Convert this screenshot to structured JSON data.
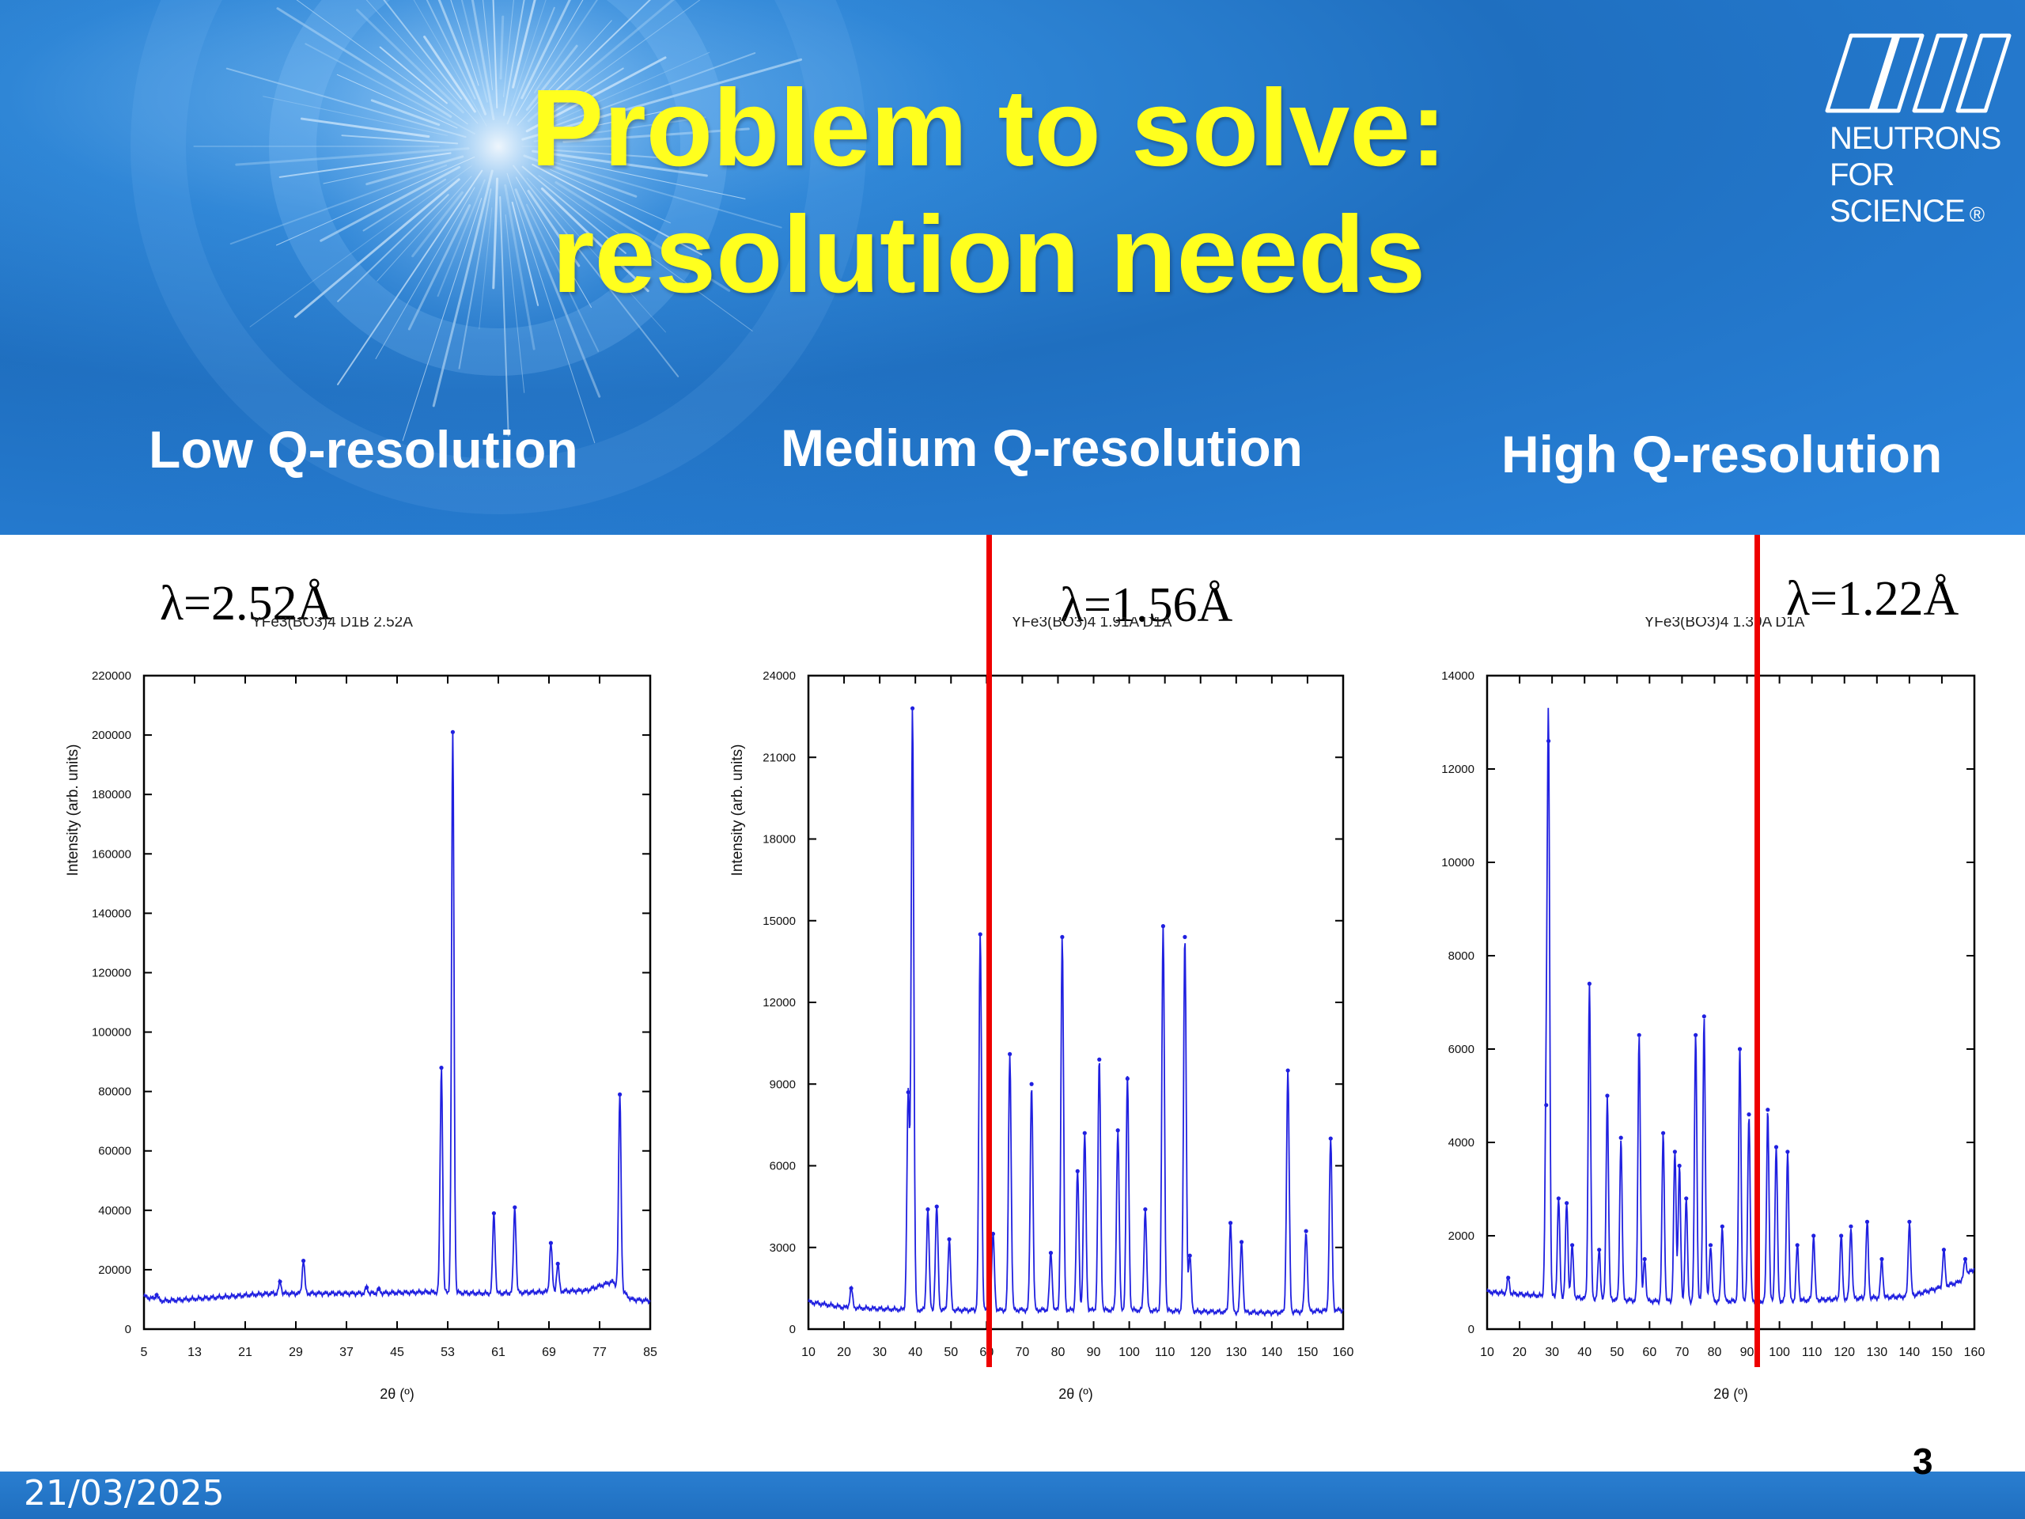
{
  "slide": {
    "title_line1": "Problem to solve:",
    "title_line2": "resolution needs",
    "logo_line1": "NEUTRONS",
    "logo_line2": "FOR SCIENCE",
    "logo_mark": "®",
    "date": "21/03/2025",
    "page_number": "3",
    "column_headers": [
      "Low Q-resolution",
      "Medium Q-resolution",
      "High Q-resolution"
    ],
    "wavelengths": [
      "λ=2.52Å",
      "λ=1.56Å",
      "λ=1.22Å"
    ],
    "colors": {
      "title": "#ffff1e",
      "header_bg": "#2a7ed0",
      "marker_line": "#ee0000",
      "data": "#2020e0"
    }
  },
  "chart_data": [
    {
      "type": "line",
      "title": "YFe3(BO3)4 D1B 2.52A",
      "xlabel": "2θ (º)",
      "ylabel": "Intensity (arb. units)",
      "xlim": [
        5,
        85
      ],
      "ylim": [
        0,
        220000
      ],
      "xticks": [
        5,
        13,
        21,
        29,
        37,
        45,
        53,
        61,
        69,
        77,
        85
      ],
      "yticks": [
        0,
        20000,
        40000,
        60000,
        80000,
        100000,
        120000,
        140000,
        160000,
        180000,
        200000,
        220000
      ],
      "baseline": [
        [
          5,
          11000
        ],
        [
          8,
          9500
        ],
        [
          15,
          10500
        ],
        [
          25,
          12000
        ],
        [
          40,
          12000
        ],
        [
          50,
          12500
        ],
        [
          60,
          12000
        ],
        [
          75,
          13000
        ],
        [
          79,
          16000
        ],
        [
          82,
          10000
        ],
        [
          85,
          9500
        ]
      ],
      "peaks": [
        [
          7,
          11500
        ],
        [
          26.5,
          16000
        ],
        [
          30.2,
          23000
        ],
        [
          40.2,
          14000
        ],
        [
          42.1,
          13500
        ],
        [
          52,
          88000
        ],
        [
          53.8,
          201000
        ],
        [
          60.3,
          39000
        ],
        [
          63.6,
          41000
        ],
        [
          69.3,
          29000
        ],
        [
          70.4,
          22000
        ],
        [
          80.2,
          79000
        ]
      ]
    },
    {
      "type": "line",
      "title": "YFe3(BO3)4 1.91A D1A",
      "xlabel": "2θ (º)",
      "ylabel": "Intensity (arb. units)",
      "xlim": [
        10,
        160
      ],
      "ylim": [
        0,
        24000
      ],
      "xticks": [
        10,
        20,
        30,
        40,
        50,
        60,
        70,
        80,
        90,
        100,
        110,
        120,
        130,
        140,
        150,
        160
      ],
      "yticks": [
        0,
        3000,
        6000,
        9000,
        12000,
        15000,
        18000,
        21000,
        24000
      ],
      "marker_x": 60.5,
      "baseline": [
        [
          10,
          1000
        ],
        [
          20,
          800
        ],
        [
          40,
          700
        ],
        [
          60,
          700
        ],
        [
          100,
          700
        ],
        [
          140,
          600
        ],
        [
          160,
          700
        ]
      ],
      "peaks": [
        [
          22,
          1500
        ],
        [
          38,
          8700
        ],
        [
          39.2,
          22800
        ],
        [
          43.5,
          4400
        ],
        [
          46,
          4500
        ],
        [
          49.5,
          3300
        ],
        [
          58.2,
          14500
        ],
        [
          61.8,
          3500
        ],
        [
          66.5,
          10100
        ],
        [
          72.6,
          9000
        ],
        [
          78,
          2800
        ],
        [
          81.2,
          14400
        ],
        [
          85.5,
          5800
        ],
        [
          87.5,
          7200
        ],
        [
          91.6,
          9900
        ],
        [
          96.8,
          7300
        ],
        [
          99.5,
          9200
        ],
        [
          104.5,
          4400
        ],
        [
          109.5,
          14800
        ],
        [
          115.6,
          14400
        ],
        [
          117,
          2700
        ],
        [
          128.4,
          3900
        ],
        [
          131.5,
          3200
        ],
        [
          144.5,
          9500
        ],
        [
          149.6,
          3600
        ],
        [
          156.5,
          7000
        ]
      ]
    },
    {
      "type": "line",
      "title": "YFe3(BO3)4 1.39A D1A",
      "xlabel": "2θ (º)",
      "ylabel": "",
      "xlim": [
        10,
        160
      ],
      "ylim": [
        0,
        14000
      ],
      "xticks": [
        10,
        20,
        30,
        40,
        50,
        60,
        70,
        80,
        90,
        100,
        110,
        120,
        130,
        140,
        150,
        160
      ],
      "yticks": [
        0,
        2000,
        4000,
        6000,
        8000,
        10000,
        12000,
        14000
      ],
      "marker_x": 93,
      "baseline": [
        [
          10,
          800
        ],
        [
          30,
          700
        ],
        [
          60,
          600
        ],
        [
          100,
          600
        ],
        [
          140,
          700
        ],
        [
          155,
          1000
        ],
        [
          160,
          1300
        ]
      ],
      "peaks": [
        [
          16.5,
          1100
        ],
        [
          28.2,
          4800
        ],
        [
          28.9,
          12600
        ],
        [
          32,
          2800
        ],
        [
          34.5,
          2700
        ],
        [
          36.2,
          1800
        ],
        [
          41.5,
          7400
        ],
        [
          44.5,
          1700
        ],
        [
          47,
          5000
        ],
        [
          51.2,
          4100
        ],
        [
          56.8,
          6300
        ],
        [
          58.5,
          1500
        ],
        [
          64.2,
          4200
        ],
        [
          67.8,
          3800
        ],
        [
          69.2,
          3500
        ],
        [
          71.3,
          2800
        ],
        [
          74.2,
          6300
        ],
        [
          76.8,
          6700
        ],
        [
          78.8,
          1800
        ],
        [
          82.4,
          2200
        ],
        [
          87.8,
          6000
        ],
        [
          90.6,
          4600
        ],
        [
          96.4,
          4700
        ],
        [
          99,
          3900
        ],
        [
          102.5,
          3800
        ],
        [
          105.5,
          1800
        ],
        [
          110.5,
          2000
        ],
        [
          119,
          2000
        ],
        [
          122,
          2200
        ],
        [
          127,
          2300
        ],
        [
          131.5,
          1500
        ],
        [
          140,
          2300
        ],
        [
          150.6,
          1700
        ],
        [
          157.2,
          1500
        ]
      ]
    }
  ]
}
